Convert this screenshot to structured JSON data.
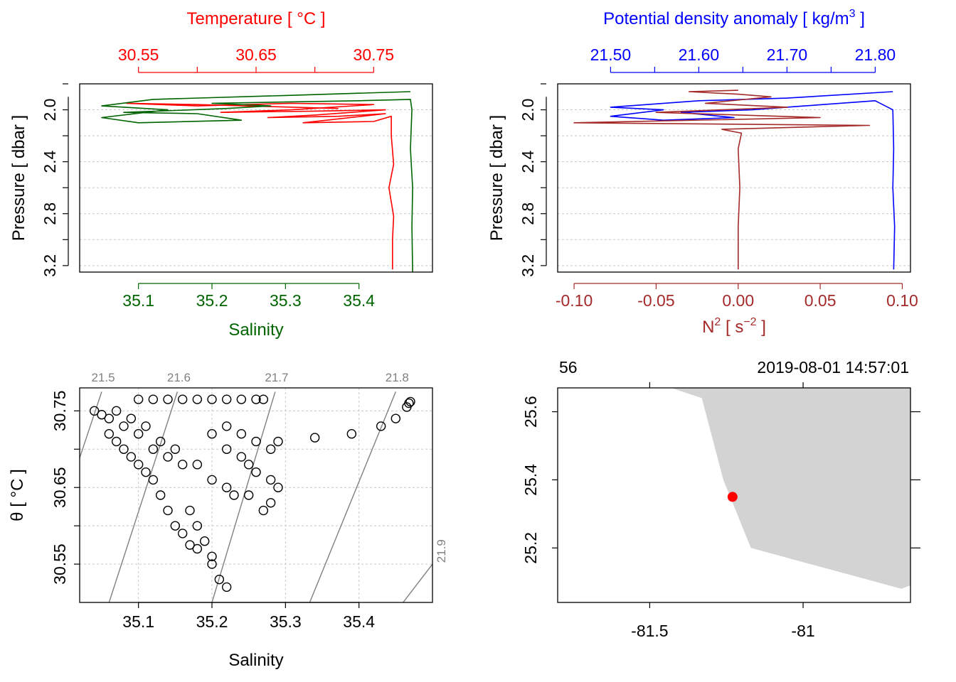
{
  "colors": {
    "temperature": "#ff0000",
    "salinity": "#006400",
    "density": "#0000ff",
    "n2": "#a52a2a",
    "land": "#d3d3d3",
    "station": "#ff0000",
    "isopycnal": "#808080",
    "points": "#000000"
  },
  "chart_data": [
    {
      "type": "line",
      "panel": "temperature-salinity-profile",
      "top_axis_label": "Temperature [ °C ]",
      "top_ticks": [
        "30.55",
        "30.65",
        "30.75"
      ],
      "top_range": [
        30.5,
        30.8
      ],
      "bottom_axis_label": "Salinity",
      "bottom_ticks": [
        "35.1",
        "35.2",
        "35.3",
        "35.4"
      ],
      "bottom_range": [
        35.02,
        35.5
      ],
      "ylabel": "Pressure [ dbar ]",
      "y_ticks": [
        "2.0",
        "2.4",
        "2.8",
        "3.2"
      ],
      "ylim": [
        1.8,
        3.25
      ],
      "y_reversed": true,
      "grid": true,
      "series": [
        {
          "measure": "temperature",
          "color_key": "temperature",
          "points": [
            [
              30.72,
              1.99
            ],
            [
              30.6,
              1.96
            ],
            [
              30.54,
              1.95
            ],
            [
              30.6,
              1.97
            ],
            [
              30.68,
              1.95
            ],
            [
              30.75,
              1.96
            ],
            [
              30.68,
              2.0
            ],
            [
              30.62,
              2.02
            ],
            [
              30.7,
              2.01
            ],
            [
              30.76,
              2.0
            ],
            [
              30.7,
              2.04
            ],
            [
              30.66,
              2.06
            ],
            [
              30.72,
              2.05
            ],
            [
              30.76,
              2.03
            ],
            [
              30.71,
              2.08
            ],
            [
              30.69,
              2.1
            ],
            [
              30.75,
              2.09
            ],
            [
              30.765,
              2.05
            ],
            [
              30.765,
              2.2
            ],
            [
              30.767,
              2.42
            ],
            [
              30.763,
              2.6
            ],
            [
              30.767,
              2.82
            ],
            [
              30.766,
              3.0
            ],
            [
              30.766,
              3.23
            ]
          ]
        },
        {
          "measure": "salinity",
          "color_key": "salinity",
          "points": [
            [
              35.47,
              1.86
            ],
            [
              35.3,
              1.89
            ],
            [
              35.12,
              1.92
            ],
            [
              35.05,
              1.97
            ],
            [
              35.14,
              2.0
            ],
            [
              35.05,
              2.06
            ],
            [
              35.1,
              2.1
            ],
            [
              35.24,
              2.08
            ],
            [
              35.18,
              2.03
            ],
            [
              35.08,
              2.02
            ],
            [
              35.22,
              1.99
            ],
            [
              35.28,
              1.97
            ],
            [
              35.2,
              1.95
            ],
            [
              35.3,
              1.94
            ],
            [
              35.4,
              1.93
            ],
            [
              35.47,
              1.92
            ],
            [
              35.472,
              2.0
            ],
            [
              35.47,
              2.3
            ],
            [
              35.473,
              2.6
            ],
            [
              35.472,
              2.9
            ],
            [
              35.473,
              3.25
            ]
          ]
        }
      ]
    },
    {
      "type": "line",
      "panel": "density-n2-profile",
      "top_axis_label": "Potential density anomaly [ kg/m",
      "top_axis_label_sup": "3",
      "top_axis_label_end": " ]",
      "top_ticks": [
        "21.50",
        "21.60",
        "21.70",
        "21.80"
      ],
      "top_range": [
        21.44,
        21.84
      ],
      "bottom_axis_label": "N",
      "bottom_axis_label_sup": "2",
      "bottom_axis_label_mid": " [ s",
      "bottom_axis_label_sup2": "−2",
      "bottom_axis_label_end": " ]",
      "bottom_ticks": [
        "-0.10",
        "-0.05",
        "0.00",
        "0.05",
        "0.10"
      ],
      "bottom_range": [
        -0.11,
        0.105
      ],
      "ylabel": "Pressure [ dbar ]",
      "y_ticks": [
        "2.0",
        "2.4",
        "2.8",
        "3.2"
      ],
      "ylim": [
        1.8,
        3.25
      ],
      "y_reversed": true,
      "grid": true,
      "series": [
        {
          "measure": "density",
          "color_key": "density",
          "points": [
            [
              21.82,
              1.86
            ],
            [
              21.7,
              1.91
            ],
            [
              21.6,
              1.93
            ],
            [
              21.5,
              1.98
            ],
            [
              21.56,
              2.0
            ],
            [
              21.5,
              2.05
            ],
            [
              21.56,
              2.08
            ],
            [
              21.64,
              2.06
            ],
            [
              21.58,
              2.02
            ],
            [
              21.66,
              2.0
            ],
            [
              21.72,
              1.97
            ],
            [
              21.8,
              1.93
            ],
            [
              21.82,
              2.0
            ],
            [
              21.821,
              2.3
            ],
            [
              21.82,
              2.6
            ],
            [
              21.822,
              2.9
            ],
            [
              21.821,
              3.23
            ]
          ]
        },
        {
          "measure": "n2",
          "color_key": "n2",
          "points": [
            [
              0.0,
              1.85
            ],
            [
              -0.03,
              1.86
            ],
            [
              0.0,
              1.88
            ],
            [
              0.02,
              1.9
            ],
            [
              -0.02,
              1.95
            ],
            [
              0.03,
              1.98
            ],
            [
              -0.05,
              2.02
            ],
            [
              0.05,
              2.06
            ],
            [
              -0.1,
              2.1
            ],
            [
              0.08,
              2.12
            ],
            [
              -0.01,
              2.15
            ],
            [
              0.002,
              2.18
            ],
            [
              0.0,
              2.3
            ],
            [
              0.001,
              2.6
            ],
            [
              0.0,
              2.9
            ],
            [
              0.0,
              3.23
            ]
          ]
        }
      ]
    },
    {
      "type": "scatter",
      "panel": "ts-diagram",
      "xlabel": "Salinity",
      "ylabel": "θ [ °C ]",
      "x_ticks": [
        "35.1",
        "35.2",
        "35.3",
        "35.4"
      ],
      "y_ticks": [
        "30.55",
        "30.65",
        "30.75"
      ],
      "xlim": [
        35.02,
        35.5
      ],
      "ylim": [
        30.5,
        30.78
      ],
      "grid": true,
      "isopycnal_labels": [
        "21.5",
        "21.6",
        "21.7",
        "21.8",
        "21.9"
      ],
      "isopycnals": [
        {
          "sigma": 21.5,
          "from": [
            35.017,
            30.68
          ],
          "to": [
            35.05,
            30.775
          ]
        },
        {
          "sigma": 21.6,
          "from": [
            35.06,
            30.5
          ],
          "to": [
            35.153,
            30.775
          ]
        },
        {
          "sigma": 21.7,
          "from": [
            35.2,
            30.5
          ],
          "to": [
            35.286,
            30.775
          ]
        },
        {
          "sigma": 21.8,
          "from": [
            35.333,
            30.5
          ],
          "to": [
            35.45,
            30.775
          ]
        },
        {
          "sigma": 21.9,
          "from": [
            35.46,
            30.5
          ],
          "to": [
            35.5,
            30.55
          ]
        }
      ],
      "points": [
        [
          35.04,
          30.75
        ],
        [
          35.05,
          30.745
        ],
        [
          35.06,
          30.74
        ],
        [
          35.07,
          30.75
        ],
        [
          35.08,
          30.73
        ],
        [
          35.09,
          30.74
        ],
        [
          35.1,
          30.72
        ],
        [
          35.11,
          30.73
        ],
        [
          35.12,
          30.7
        ],
        [
          35.13,
          30.71
        ],
        [
          35.14,
          30.69
        ],
        [
          35.15,
          30.7
        ],
        [
          35.16,
          30.68
        ],
        [
          35.06,
          30.72
        ],
        [
          35.07,
          30.71
        ],
        [
          35.08,
          30.7
        ],
        [
          35.09,
          30.69
        ],
        [
          35.1,
          30.68
        ],
        [
          35.11,
          30.67
        ],
        [
          35.12,
          30.66
        ],
        [
          35.13,
          30.64
        ],
        [
          35.14,
          30.62
        ],
        [
          35.15,
          30.6
        ],
        [
          35.16,
          30.59
        ],
        [
          35.17,
          30.575
        ],
        [
          35.18,
          30.57
        ],
        [
          35.2,
          30.55
        ],
        [
          35.21,
          30.53
        ],
        [
          35.22,
          30.52
        ],
        [
          35.1,
          30.765
        ],
        [
          35.12,
          30.765
        ],
        [
          35.14,
          30.765
        ],
        [
          35.16,
          30.765
        ],
        [
          35.18,
          30.765
        ],
        [
          35.2,
          30.765
        ],
        [
          35.22,
          30.765
        ],
        [
          35.24,
          30.765
        ],
        [
          35.26,
          30.765
        ],
        [
          35.27,
          30.765
        ],
        [
          35.2,
          30.72
        ],
        [
          35.22,
          30.7
        ],
        [
          35.24,
          30.69
        ],
        [
          35.25,
          30.68
        ],
        [
          35.26,
          30.67
        ],
        [
          35.28,
          30.66
        ],
        [
          35.29,
          30.65
        ],
        [
          35.22,
          30.73
        ],
        [
          35.24,
          30.72
        ],
        [
          35.26,
          30.71
        ],
        [
          35.28,
          30.7
        ],
        [
          35.18,
          30.68
        ],
        [
          35.2,
          30.66
        ],
        [
          35.22,
          30.65
        ],
        [
          35.23,
          30.64
        ],
        [
          35.17,
          30.62
        ],
        [
          35.18,
          30.6
        ],
        [
          35.19,
          30.58
        ],
        [
          35.2,
          30.56
        ],
        [
          35.27,
          30.62
        ],
        [
          35.28,
          30.63
        ],
        [
          35.25,
          30.64
        ],
        [
          35.29,
          30.71
        ],
        [
          35.34,
          30.715
        ],
        [
          35.39,
          30.72
        ],
        [
          35.43,
          30.73
        ],
        [
          35.45,
          30.74
        ],
        [
          35.465,
          30.755
        ],
        [
          35.468,
          30.76
        ],
        [
          35.47,
          30.762
        ]
      ]
    },
    {
      "type": "scatter",
      "panel": "station-map",
      "header_left": "56",
      "header_right": "2019-08-01 14:57:01",
      "x_ticks": [
        "-81.5",
        "-81"
      ],
      "y_ticks": [
        "25.2",
        "25.4",
        "25.6"
      ],
      "xlim": [
        -81.8,
        -80.65
      ],
      "ylim": [
        25.04,
        25.67
      ],
      "land_polygon": [
        [
          -81.43,
          25.67
        ],
        [
          -80.65,
          25.67
        ],
        [
          -80.65,
          25.09
        ],
        [
          -80.68,
          25.08
        ],
        [
          -81.17,
          25.2
        ],
        [
          -81.26,
          25.4
        ],
        [
          -81.33,
          25.64
        ],
        [
          -81.43,
          25.67
        ]
      ],
      "station": {
        "lon": -81.23,
        "lat": 25.35
      }
    }
  ]
}
